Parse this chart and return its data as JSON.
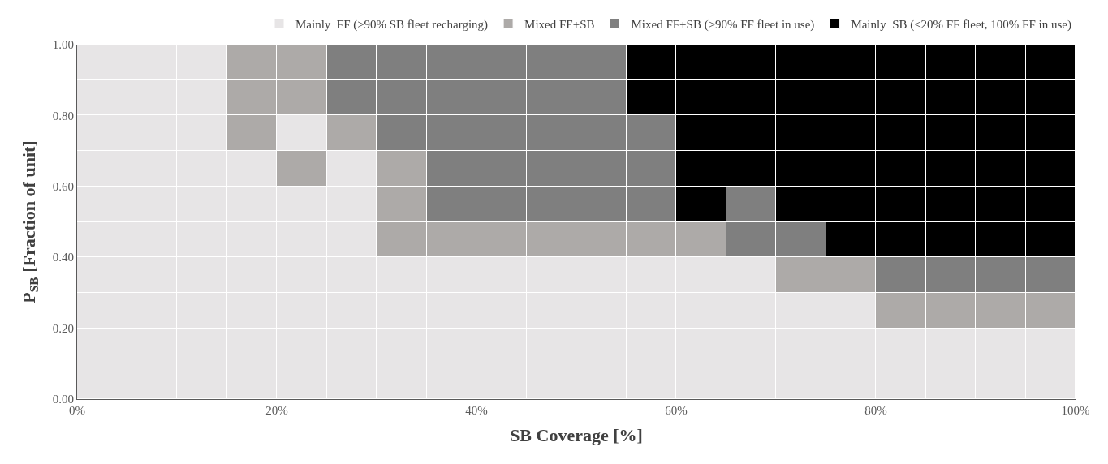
{
  "chart_data": {
    "type": "bar",
    "stacked": true,
    "xlabel": "SB Coverage [%]",
    "ylabel": "P$_{SB}$ [Fraction of unit]",
    "x": [
      2.5,
      7.5,
      12.5,
      17.5,
      22.5,
      27.5,
      32.5,
      37.5,
      42.5,
      47.5,
      52.5,
      57.5,
      62.5,
      67.5,
      72.5,
      77.5,
      82.5,
      87.5,
      92.5,
      97.5
    ],
    "series": [
      {
        "values": [
          0.1,
          0.1,
          0.1,
          0.1,
          0.1,
          0.1,
          0.1,
          0.1,
          0.1,
          0.1,
          0.1,
          0.1,
          0.1,
          0.1,
          0.1,
          0.1,
          0.1,
          0.1,
          0.1,
          0.1
        ],
        "colors": [
          "#e7e5e6",
          "#e7e5e6",
          "#e7e5e6",
          "#e7e5e6",
          "#e7e5e6",
          "#e7e5e6",
          "#e7e5e6",
          "#e7e5e6",
          "#e7e5e6",
          "#e7e5e6",
          "#e7e5e6",
          "#e7e5e6",
          "#e7e5e6",
          "#e7e5e6",
          "#e7e5e6",
          "#e7e5e6",
          "#e7e5e6",
          "#e7e5e6",
          "#e7e5e6",
          "#e7e5e6"
        ]
      },
      {
        "values": [
          0.1,
          0.1,
          0.1,
          0.1,
          0.1,
          0.1,
          0.1,
          0.1,
          0.1,
          0.1,
          0.1,
          0.1,
          0.1,
          0.1,
          0.1,
          0.1,
          0.1,
          0.1,
          0.1,
          0.1
        ],
        "colors": [
          "#e7e5e6",
          "#e7e5e6",
          "#e7e5e6",
          "#e7e5e6",
          "#e7e5e6",
          "#e7e5e6",
          "#e7e5e6",
          "#e7e5e6",
          "#e7e5e6",
          "#e7e5e6",
          "#e7e5e6",
          "#e7e5e6",
          "#e7e5e6",
          "#e7e5e6",
          "#e7e5e6",
          "#e7e5e6",
          "#e7e5e6",
          "#e7e5e6",
          "#e7e5e6",
          "#e7e5e6"
        ]
      },
      {
        "values": [
          0.1,
          0.1,
          0.1,
          0.1,
          0.1,
          0.1,
          0.1,
          0.1,
          0.1,
          0.1,
          0.1,
          0.1,
          0.1,
          0.1,
          0.1,
          0.1,
          0.1,
          0.1,
          0.1,
          0.1
        ],
        "colors": [
          "#e7e5e6",
          "#e7e5e6",
          "#e7e5e6",
          "#e7e5e6",
          "#e7e5e6",
          "#e7e5e6",
          "#e7e5e6",
          "#e7e5e6",
          "#e7e5e6",
          "#e7e5e6",
          "#e7e5e6",
          "#e7e5e6",
          "#e7e5e6",
          "#e7e5e6",
          "#e7e5e6",
          "#e7e5e6",
          "#adaaa8",
          "#adaaa8",
          "#adaaa8",
          "#adaaa8"
        ]
      },
      {
        "values": [
          0.1,
          0.1,
          0.1,
          0.1,
          0.1,
          0.1,
          0.1,
          0.1,
          0.1,
          0.1,
          0.1,
          0.1,
          0.1,
          0.1,
          0.1,
          0.1,
          0.1,
          0.1,
          0.1,
          0.1
        ],
        "colors": [
          "#e7e5e6",
          "#e7e5e6",
          "#e7e5e6",
          "#e7e5e6",
          "#e7e5e6",
          "#e7e5e6",
          "#e7e5e6",
          "#e7e5e6",
          "#e7e5e6",
          "#e7e5e6",
          "#e7e5e6",
          "#e7e5e6",
          "#e7e5e6",
          "#e7e5e6",
          "#adaaa8",
          "#adaaa8",
          "#7f7f7f",
          "#7f7f7f",
          "#7f7f7f",
          "#7f7f7f"
        ]
      },
      {
        "values": [
          0.1,
          0.1,
          0.1,
          0.1,
          0.1,
          0.1,
          0.1,
          0.1,
          0.1,
          0.1,
          0.1,
          0.1,
          0.1,
          0.1,
          0.1,
          0.1,
          0.1,
          0.1,
          0.1,
          0.1
        ],
        "colors": [
          "#e7e5e6",
          "#e7e5e6",
          "#e7e5e6",
          "#e7e5e6",
          "#e7e5e6",
          "#e7e5e6",
          "#adaaa8",
          "#adaaa8",
          "#adaaa8",
          "#adaaa8",
          "#adaaa8",
          "#adaaa8",
          "#adaaa8",
          "#7f7f7f",
          "#7f7f7f",
          "#000000",
          "#000000",
          "#000000",
          "#000000",
          "#000000"
        ]
      },
      {
        "values": [
          0.1,
          0.1,
          0.1,
          0.1,
          0.1,
          0.1,
          0.1,
          0.1,
          0.1,
          0.1,
          0.1,
          0.1,
          0.1,
          0.1,
          0.1,
          0.1,
          0.1,
          0.1,
          0.1,
          0.1
        ],
        "colors": [
          "#e7e5e6",
          "#e7e5e6",
          "#e7e5e6",
          "#e7e5e6",
          "#e7e5e6",
          "#e7e5e6",
          "#adaaa8",
          "#7f7f7f",
          "#7f7f7f",
          "#7f7f7f",
          "#7f7f7f",
          "#7f7f7f",
          "#000000",
          "#7f7f7f",
          "#000000",
          "#000000",
          "#000000",
          "#000000",
          "#000000",
          "#000000"
        ]
      },
      {
        "values": [
          0.1,
          0.1,
          0.1,
          0.1,
          0.1,
          0.1,
          0.1,
          0.1,
          0.1,
          0.1,
          0.1,
          0.1,
          0.1,
          0.1,
          0.1,
          0.1,
          0.1,
          0.1,
          0.1,
          0.1
        ],
        "colors": [
          "#e7e5e6",
          "#e7e5e6",
          "#e7e5e6",
          "#e7e5e6",
          "#adaaa8",
          "#e7e5e6",
          "#adaaa8",
          "#7f7f7f",
          "#7f7f7f",
          "#7f7f7f",
          "#7f7f7f",
          "#7f7f7f",
          "#000000",
          "#000000",
          "#000000",
          "#000000",
          "#000000",
          "#000000",
          "#000000",
          "#000000"
        ]
      },
      {
        "values": [
          0.1,
          0.1,
          0.1,
          0.1,
          0.1,
          0.1,
          0.1,
          0.1,
          0.1,
          0.1,
          0.1,
          0.1,
          0.1,
          0.1,
          0.1,
          0.1,
          0.1,
          0.1,
          0.1,
          0.1
        ],
        "colors": [
          "#e7e5e6",
          "#e7e5e6",
          "#e7e5e6",
          "#adaaa8",
          "#e7e5e6",
          "#adaaa8",
          "#7f7f7f",
          "#7f7f7f",
          "#7f7f7f",
          "#7f7f7f",
          "#7f7f7f",
          "#7f7f7f",
          "#000000",
          "#000000",
          "#000000",
          "#000000",
          "#000000",
          "#000000",
          "#000000",
          "#000000"
        ]
      },
      {
        "values": [
          0.1,
          0.1,
          0.1,
          0.1,
          0.1,
          0.1,
          0.1,
          0.1,
          0.1,
          0.1,
          0.1,
          0.1,
          0.1,
          0.1,
          0.1,
          0.1,
          0.1,
          0.1,
          0.1,
          0.1
        ],
        "colors": [
          "#e7e5e6",
          "#e7e5e6",
          "#e7e5e6",
          "#adaaa8",
          "#adaaa8",
          "#7f7f7f",
          "#7f7f7f",
          "#7f7f7f",
          "#7f7f7f",
          "#7f7f7f",
          "#7f7f7f",
          "#000000",
          "#000000",
          "#000000",
          "#000000",
          "#000000",
          "#000000",
          "#000000",
          "#000000",
          "#000000"
        ]
      },
      {
        "values": [
          0.1,
          0.1,
          0.1,
          0.1,
          0.1,
          0.1,
          0.1,
          0.1,
          0.1,
          0.1,
          0.1,
          0.1,
          0.1,
          0.1,
          0.1,
          0.1,
          0.1,
          0.1,
          0.1,
          0.1
        ],
        "colors": [
          "#e7e5e6",
          "#e7e5e6",
          "#e7e5e6",
          "#adaaa8",
          "#adaaa8",
          "#7f7f7f",
          "#7f7f7f",
          "#7f7f7f",
          "#7f7f7f",
          "#7f7f7f",
          "#7f7f7f",
          "#000000",
          "#000000",
          "#000000",
          "#000000",
          "#000000",
          "#000000",
          "#000000",
          "#000000",
          "#000000"
        ]
      },
      {
        "name": "Mainly  FF (≥90% SB fleet recharging)",
        "color": "#e7e5e6",
        "values": [
          null,
          null,
          null,
          null,
          null,
          null,
          null,
          null,
          null,
          null,
          null,
          null,
          null,
          null,
          null,
          null,
          null,
          null,
          null,
          null
        ]
      },
      {
        "name": "Mixed FF+SB",
        "color": "#adaaa8",
        "values": [
          null,
          null,
          null,
          null,
          null,
          null,
          null,
          null,
          null,
          null,
          null,
          null,
          null,
          null,
          null,
          null,
          null,
          null,
          null,
          null
        ]
      },
      {
        "name": "Mixed FF+SB (≥90% FF fleet in use)",
        "color": "#7f7f7f",
        "values": [
          null,
          null,
          null,
          null,
          null,
          null,
          null,
          null,
          null,
          null,
          null,
          null,
          null,
          null,
          null,
          null,
          null,
          null,
          null,
          null
        ]
      },
      {
        "name": "Mainly  SB (≤20% FF fleet, 100% FF in use)",
        "color": "#000000",
        "values": [
          null,
          null,
          null,
          null,
          null,
          null,
          null,
          null,
          null,
          null,
          null,
          null,
          null,
          null,
          null,
          null,
          null,
          null,
          null,
          null
        ]
      }
    ],
    "xlim": [
      0,
      100
    ],
    "xticks": [
      {
        "value": 0,
        "label": "0%"
      },
      {
        "value": 20,
        "label": "20%"
      },
      {
        "value": 40,
        "label": "40%"
      },
      {
        "value": 60,
        "label": "60%"
      },
      {
        "value": 80,
        "label": "80%"
      },
      {
        "value": 100,
        "label": "100%"
      }
    ],
    "ylim": [
      0,
      1
    ],
    "yticks": [
      {
        "value": 0,
        "label": "0.00"
      },
      {
        "value": 0.2,
        "label": "0.20"
      },
      {
        "value": 0.4,
        "label": "0.40"
      },
      {
        "value": 0.6,
        "label": "0.60"
      },
      {
        "value": 0.8,
        "label": "0.80"
      },
      {
        "value": 1,
        "label": "1.00"
      }
    ],
    "legend": "top"
  }
}
